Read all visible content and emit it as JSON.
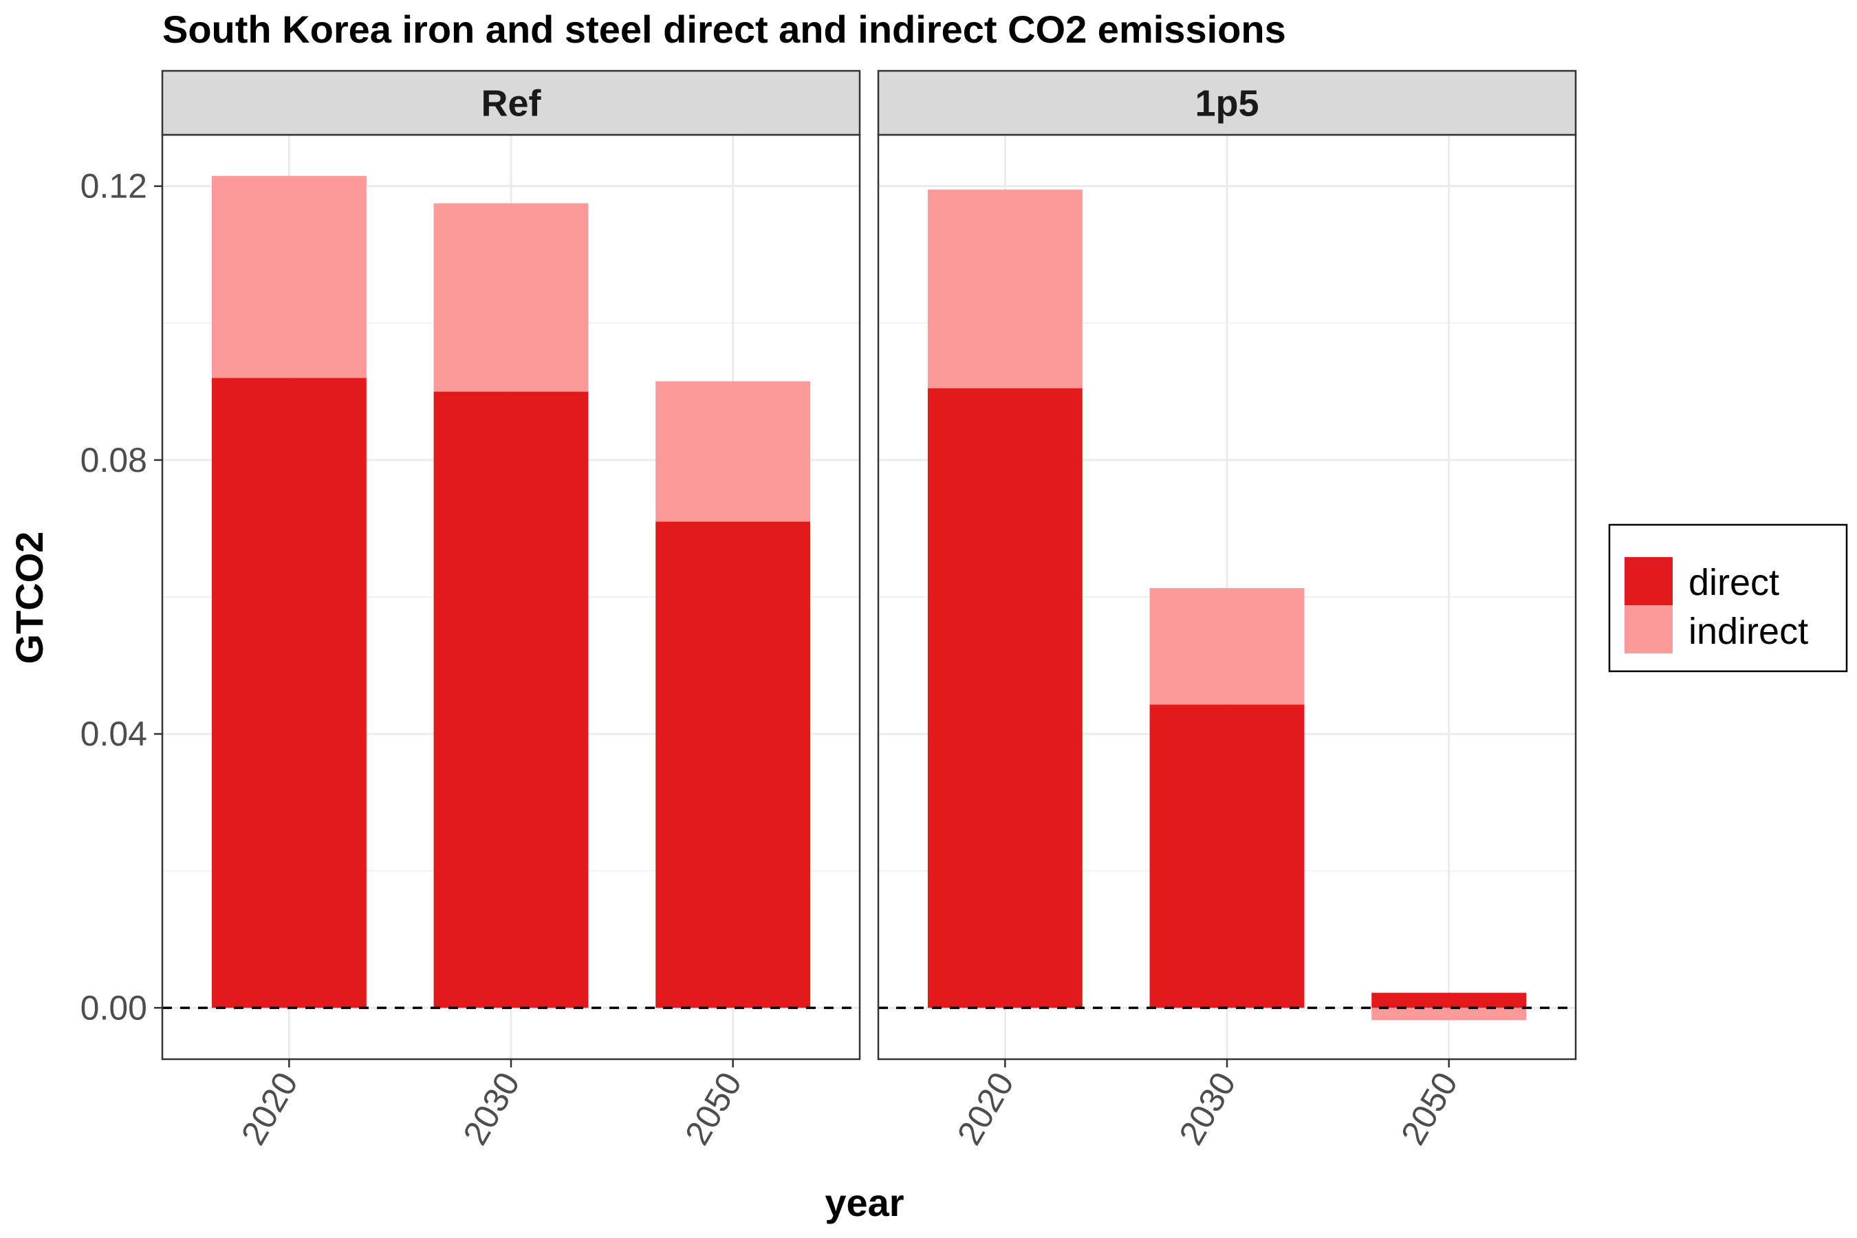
{
  "chart_data": {
    "type": "bar",
    "stacked": true,
    "title": "South Korea iron and steel direct and indirect CO2 emissions",
    "xlabel": "year",
    "ylabel": "GTCO2",
    "ylim": [
      -0.0075,
      0.1275
    ],
    "yticks": [
      0.0,
      0.04,
      0.08,
      0.12
    ],
    "ytick_labels": [
      "0.00",
      "0.04",
      "0.08",
      "0.12"
    ],
    "categories": [
      "2020",
      "2030",
      "2050"
    ],
    "grid": true,
    "reference_line": {
      "y": 0,
      "style": "dashed"
    },
    "legend_position": "right",
    "series_colors": {
      "direct": "#e31a1c",
      "indirect": "#fb9a99"
    },
    "panels": [
      {
        "label": "Ref",
        "series": [
          {
            "name": "direct",
            "values": [
              0.092,
              0.09,
              0.071
            ]
          },
          {
            "name": "indirect",
            "values": [
              0.0295,
              0.0275,
              0.0205
            ]
          }
        ]
      },
      {
        "label": "1p5",
        "series": [
          {
            "name": "direct",
            "values": [
              0.0905,
              0.0443,
              0.0022
            ]
          },
          {
            "name": "indirect",
            "values": [
              0.029,
              0.017,
              -0.0018
            ]
          }
        ]
      }
    ]
  }
}
